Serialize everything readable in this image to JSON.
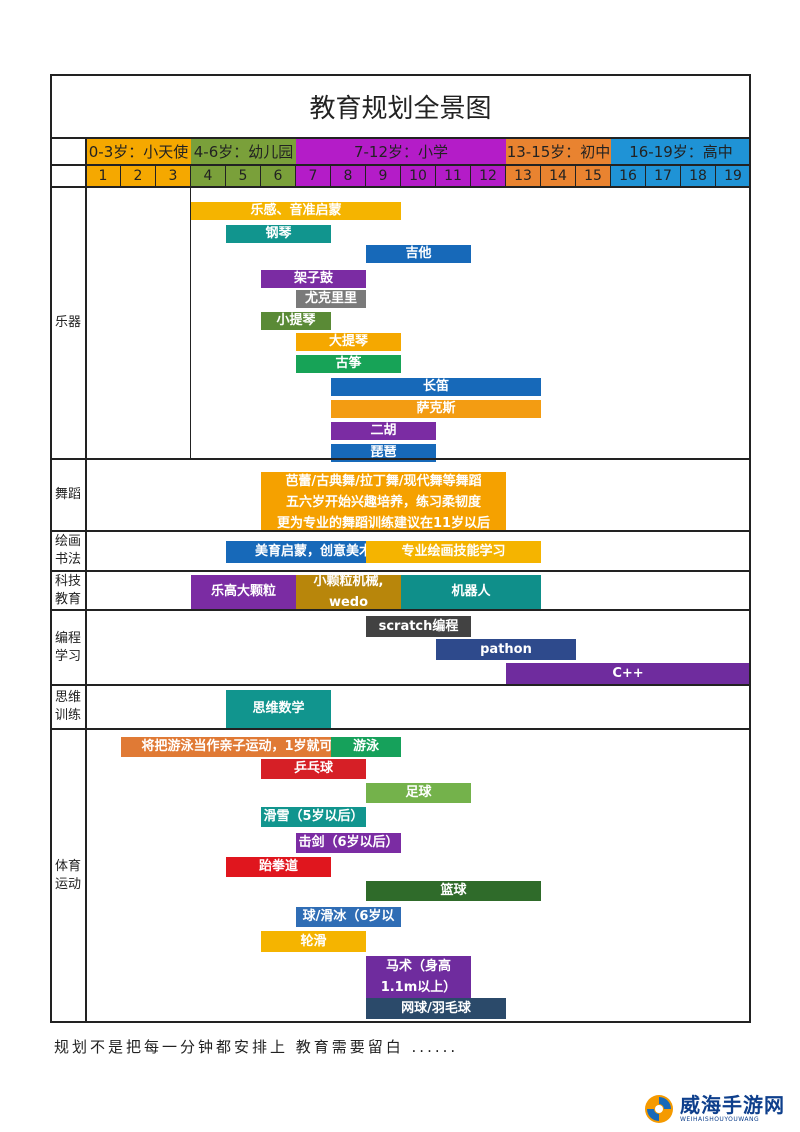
{
  "title": "教育规划全景图",
  "colors": {
    "stage_infant": "#f5a800",
    "stage_kinder": "#7a9f3b",
    "stage_primary": "#b41cc8",
    "stage_junior": "#e98330",
    "stage_senior": "#1f93d6"
  },
  "stages": [
    {
      "label": "0-3岁：小天使",
      "from": 1,
      "to": 3,
      "color": "#f5a800"
    },
    {
      "label": "4-6岁：幼儿园",
      "from": 4,
      "to": 6,
      "color": "#7aa03a"
    },
    {
      "label": "7-12岁：小学",
      "from": 7,
      "to": 12,
      "color": "#b41cc8"
    },
    {
      "label": "13-15岁：初中",
      "from": 13,
      "to": 15,
      "color": "#e98330"
    },
    {
      "label": "16-19岁：高中",
      "from": 16,
      "to": 19,
      "color": "#1f93d6"
    }
  ],
  "ages": [
    "1",
    "2",
    "3",
    "4",
    "5",
    "6",
    "7",
    "8",
    "9",
    "10",
    "11",
    "12",
    "13",
    "14",
    "15",
    "16",
    "17",
    "18",
    "19"
  ],
  "categories": [
    {
      "name": "乐器",
      "lines": [
        "乐器"
      ]
    },
    {
      "name": "舞蹈",
      "lines": [
        "舞蹈"
      ]
    },
    {
      "name": "绘画书法",
      "lines": [
        "绘画",
        "书法"
      ]
    },
    {
      "name": "科技教育",
      "lines": [
        "科技",
        "教育"
      ]
    },
    {
      "name": "编程学习",
      "lines": [
        "编程",
        "学习"
      ]
    },
    {
      "name": "思维训练",
      "lines": [
        "思维",
        "训练"
      ]
    },
    {
      "name": "体育运动",
      "lines": [
        "体育",
        "运动"
      ]
    }
  ],
  "bars": [
    {
      "lines": [
        "乐感、音准启蒙"
      ],
      "from": 4,
      "to": 9,
      "color": "#f5b400"
    },
    {
      "lines": [
        "钢琴"
      ],
      "from": 5,
      "to": 7,
      "color": "#11958e"
    },
    {
      "lines": [
        "吉他"
      ],
      "from": 9,
      "to": 11,
      "color": "#1769b9"
    },
    {
      "lines": [
        "架子鼓"
      ],
      "from": 6,
      "to": 8,
      "color": "#7b2ca3"
    },
    {
      "lines": [
        "尤克里里"
      ],
      "from": 7,
      "to": 8,
      "color": "#7a7a7a"
    },
    {
      "lines": [
        "小提琴"
      ],
      "from": 6,
      "to": 7,
      "color": "#5a8a36"
    },
    {
      "lines": [
        "大提琴"
      ],
      "from": 7,
      "to": 9,
      "color": "#f5a800"
    },
    {
      "lines": [
        "古筝"
      ],
      "from": 7,
      "to": 9,
      "color": "#17a357"
    },
    {
      "lines": [
        "长笛"
      ],
      "from": 8,
      "to": 13,
      "color": "#1769b9"
    },
    {
      "lines": [
        "萨克斯"
      ],
      "from": 8,
      "to": 13,
      "color": "#f39c12"
    },
    {
      "lines": [
        "二胡"
      ],
      "from": 8,
      "to": 10,
      "color": "#7b2ca3"
    },
    {
      "lines": [
        "琵琶"
      ],
      "from": 8,
      "to": 10,
      "color": "#1769b9"
    },
    {
      "lines": [
        "芭蕾/古典舞/拉丁舞/现代舞等舞蹈",
        "五六岁开始兴趣培养，练习柔韧度",
        "更为专业的舞蹈训练建议在11岁以后"
      ],
      "from": 6,
      "to": 12,
      "color": "#f5a100"
    },
    {
      "lines": [
        "美育启蒙，创意美术"
      ],
      "from": 5,
      "to": 9,
      "color": "#1769b9"
    },
    {
      "lines": [
        "专业绘画技能学习"
      ],
      "from": 9,
      "to": 13,
      "color": "#f5b400"
    },
    {
      "lines": [
        "乐高大颗粒"
      ],
      "from": 4,
      "to": 6,
      "color": "#7b2ca3"
    },
    {
      "lines": [
        "小颗粒机械,",
        "wedo"
      ],
      "from": 7,
      "to": 9,
      "color": "#b8860b"
    },
    {
      "lines": [
        "机器人"
      ],
      "from": 10,
      "to": 13,
      "color": "#0f8f8a"
    },
    {
      "lines": [
        "scratch编程"
      ],
      "from": 9,
      "to": 11,
      "color": "#424242"
    },
    {
      "lines": [
        "pathon"
      ],
      "from": 11,
      "to": 14,
      "color": "#2e4a8c"
    },
    {
      "lines": [
        "C++"
      ],
      "from": 13,
      "to": 19,
      "color": "#6f2c9e"
    },
    {
      "lines": [
        "思维数学"
      ],
      "from": 5,
      "to": 7,
      "color": "#11958e"
    },
    {
      "lines": [
        "将把游泳当作亲子运动，1岁就可以"
      ],
      "from": 2,
      "to": 8,
      "color": "#e07a35"
    },
    {
      "lines": [
        "游泳"
      ],
      "from": 8,
      "to": 9,
      "color": "#16a15b"
    },
    {
      "lines": [
        "乒乓球"
      ],
      "from": 6,
      "to": 8,
      "color": "#d61f26"
    },
    {
      "lines": [
        "足球"
      ],
      "from": 9,
      "to": 11,
      "color": "#74b24b"
    },
    {
      "lines": [
        "滑雪（5岁以后）"
      ],
      "from": 6,
      "to": 8,
      "color": "#11958e"
    },
    {
      "lines": [
        "击剑（6岁以后）"
      ],
      "from": 7,
      "to": 9,
      "color": "#7b2ca3"
    },
    {
      "lines": [
        "跆拳道"
      ],
      "from": 5,
      "to": 7,
      "color": "#e0161e"
    },
    {
      "lines": [
        "篮球"
      ],
      "from": 9,
      "to": 13,
      "color": "#2f6b2a"
    },
    {
      "lines": [
        "球/滑冰（6岁以"
      ],
      "from": 7,
      "to": 9,
      "color": "#2f6db5"
    },
    {
      "lines": [
        "轮滑"
      ],
      "from": 6,
      "to": 8,
      "color": "#f5b400"
    },
    {
      "lines": [
        "马术（身高",
        "1.1m以上）"
      ],
      "from": 9,
      "to": 11,
      "color": "#6f2c9e"
    },
    {
      "lines": [
        "网球/羽毛球"
      ],
      "from": 9,
      "to": 12,
      "color": "#2b4a6a"
    }
  ],
  "footer": "规划不是把每一分钟都安排上 教育需要留白 ......",
  "watermark": {
    "main": "威海手游网",
    "sub": "WEIHAISHOUYOUWANG",
    "color": "#0e3f8c"
  }
}
